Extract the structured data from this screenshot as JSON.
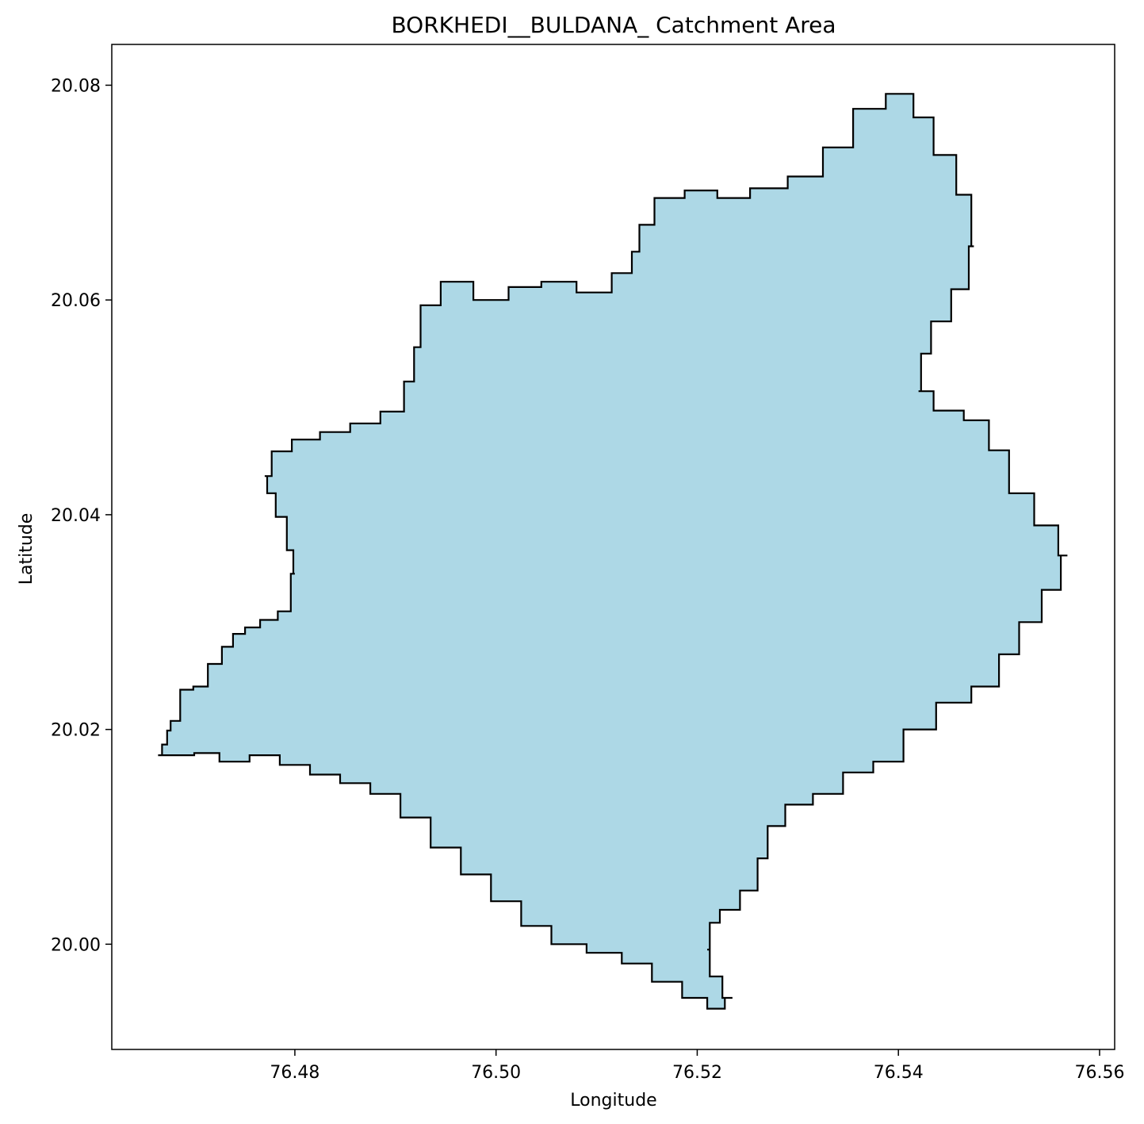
{
  "chart_data": {
    "type": "map",
    "title": "BORKHEDI__BULDANA_ Catchment Area",
    "xlabel": "Longitude",
    "ylabel": "Latitude",
    "xlim": [
      76.4618,
      76.5615
    ],
    "ylim": [
      19.9902,
      20.0838
    ],
    "xticks": [
      "76.48",
      "76.50",
      "76.52",
      "76.54",
      "76.56"
    ],
    "yticks": [
      "20.00",
      "20.02",
      "20.04",
      "20.06",
      "20.08"
    ],
    "grid": false,
    "fill_color": "#add8e6",
    "edge_color": "#000000",
    "boundary": [
      [
        76.4664,
        20.0176
      ],
      [
        76.4672,
        20.0186
      ],
      [
        76.4674,
        20.0199
      ],
      [
        76.4679,
        20.0208
      ],
      [
        76.4693,
        20.0237
      ],
      [
        76.4705,
        20.024
      ],
      [
        76.4722,
        20.0261
      ],
      [
        76.4733,
        20.0277
      ],
      [
        76.4744,
        20.0289
      ],
      [
        76.4757,
        20.0295
      ],
      [
        76.4774,
        20.0302
      ],
      [
        76.4792,
        20.031
      ],
      [
        76.48,
        20.0345
      ],
      [
        76.4797,
        20.0367
      ],
      [
        76.4787,
        20.0398
      ],
      [
        76.4775,
        20.042
      ],
      [
        76.477,
        20.0436
      ],
      [
        76.4784,
        20.0459
      ],
      [
        76.481,
        20.047
      ],
      [
        76.484,
        20.0477
      ],
      [
        76.487,
        20.0485
      ],
      [
        76.49,
        20.0496
      ],
      [
        76.4917,
        20.0524
      ],
      [
        76.492,
        20.0556
      ],
      [
        76.493,
        20.0595
      ],
      [
        76.496,
        20.0617
      ],
      [
        76.4995,
        20.06
      ],
      [
        76.503,
        20.0612
      ],
      [
        76.506,
        20.0617
      ],
      [
        76.51,
        20.0607
      ],
      [
        76.513,
        20.0625
      ],
      [
        76.514,
        20.0645
      ],
      [
        76.5145,
        20.067
      ],
      [
        76.517,
        20.0695
      ],
      [
        76.5205,
        20.0702
      ],
      [
        76.5235,
        20.0695
      ],
      [
        76.527,
        20.0704
      ],
      [
        76.531,
        20.0715
      ],
      [
        76.534,
        20.0742
      ],
      [
        76.537,
        20.0778
      ],
      [
        76.5405,
        20.0792
      ],
      [
        76.5425,
        20.077
      ],
      [
        76.5445,
        20.0735
      ],
      [
        76.547,
        20.0698
      ],
      [
        76.5475,
        20.065
      ],
      [
        76.5465,
        20.061
      ],
      [
        76.544,
        20.058
      ],
      [
        76.5425,
        20.055
      ],
      [
        76.542,
        20.0515
      ],
      [
        76.545,
        20.0497
      ],
      [
        76.548,
        20.0488
      ],
      [
        76.55,
        20.046
      ],
      [
        76.552,
        20.042
      ],
      [
        76.555,
        20.039
      ],
      [
        76.5568,
        20.0362
      ],
      [
        76.5555,
        20.033
      ],
      [
        76.553,
        20.03
      ],
      [
        76.551,
        20.027
      ],
      [
        76.549,
        20.024
      ],
      [
        76.5455,
        20.0225
      ],
      [
        76.542,
        20.02
      ],
      [
        76.539,
        20.017
      ],
      [
        76.536,
        20.016
      ],
      [
        76.533,
        20.014
      ],
      [
        76.53,
        20.013
      ],
      [
        76.5275,
        20.011
      ],
      [
        76.5265,
        20.008
      ],
      [
        76.5255,
        20.005
      ],
      [
        76.523,
        20.0032
      ],
      [
        76.5215,
        20.002
      ],
      [
        76.521,
        19.9995
      ],
      [
        76.5215,
        19.997
      ],
      [
        76.5235,
        19.995
      ],
      [
        76.522,
        19.994
      ],
      [
        76.52,
        19.995
      ],
      [
        76.517,
        19.9965
      ],
      [
        76.514,
        19.9982
      ],
      [
        76.511,
        19.9992
      ],
      [
        76.507,
        20.0
      ],
      [
        76.504,
        20.0017
      ],
      [
        76.501,
        20.004
      ],
      [
        76.498,
        20.0065
      ],
      [
        76.495,
        20.009
      ],
      [
        76.492,
        20.0118
      ],
      [
        76.489,
        20.014
      ],
      [
        76.486,
        20.015
      ],
      [
        76.483,
        20.0158
      ],
      [
        76.48,
        20.0167
      ],
      [
        76.477,
        20.0176
      ],
      [
        76.474,
        20.017
      ],
      [
        76.471,
        20.0178
      ],
      [
        76.469,
        20.0176
      ]
    ]
  }
}
